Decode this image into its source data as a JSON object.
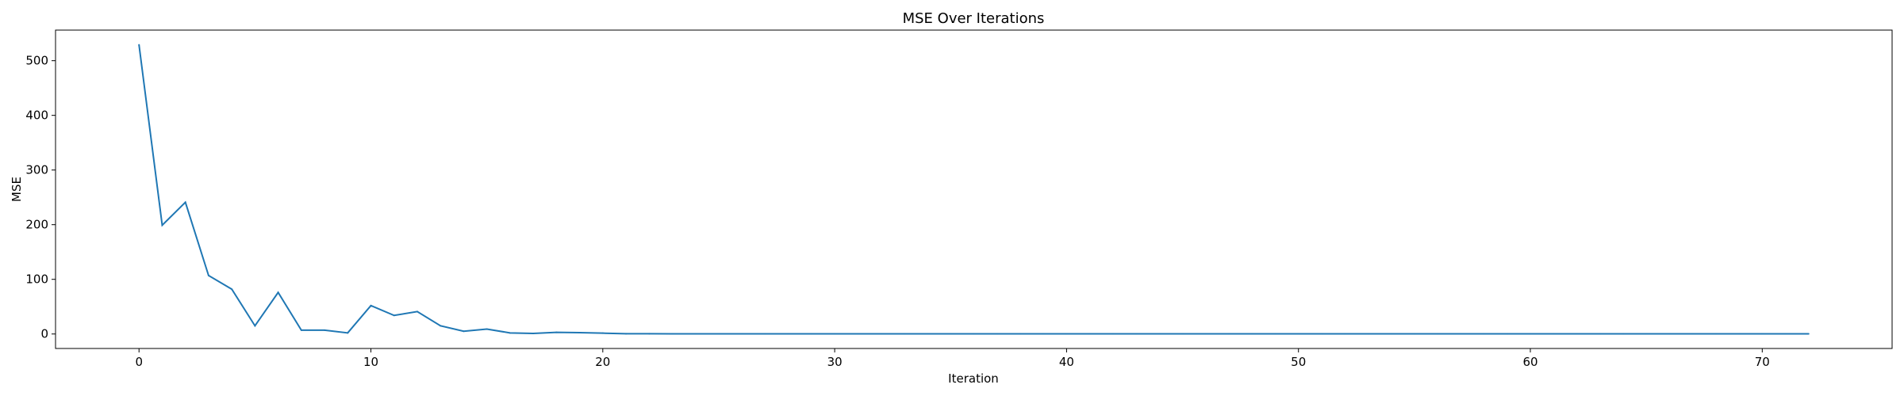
{
  "chart_data": {
    "type": "line",
    "title": "MSE Over Iterations",
    "xlabel": "Iteration",
    "ylabel": "MSE",
    "xlim": [
      -3.6,
      75.6
    ],
    "ylim": [
      -26.5,
      556
    ],
    "xticks": [
      0,
      10,
      20,
      30,
      40,
      50,
      60,
      70
    ],
    "yticks": [
      0,
      100,
      200,
      300,
      400,
      500
    ],
    "grid": false,
    "series": [
      {
        "color": "#1f77b4",
        "x": [
          0,
          1,
          2,
          3,
          4,
          5,
          6,
          7,
          8,
          9,
          10,
          11,
          12,
          13,
          14,
          15,
          16,
          17,
          18,
          19,
          20,
          21,
          22,
          23,
          24,
          25,
          26,
          27,
          28,
          29,
          30,
          31,
          32,
          33,
          34,
          35,
          36,
          37,
          38,
          39,
          40,
          41,
          42,
          43,
          44,
          45,
          46,
          47,
          48,
          49,
          50,
          51,
          52,
          53,
          54,
          55,
          56,
          57,
          58,
          59,
          60,
          61,
          62,
          63,
          64,
          65,
          66,
          67,
          68,
          69,
          70,
          71,
          72
        ],
        "y": [
          529,
          199,
          241,
          107,
          82,
          15,
          76,
          7,
          7,
          2,
          52,
          34,
          41,
          15,
          5,
          9,
          2,
          1,
          3,
          2.5,
          1.5,
          0.5,
          0.5,
          0.3,
          0.3,
          0.3,
          0.3,
          0.3,
          0.3,
          0.3,
          0.3,
          0.3,
          0.3,
          0.3,
          0.3,
          0.3,
          0.3,
          0.3,
          0.3,
          0.3,
          0.3,
          0.3,
          0.3,
          0.3,
          0.3,
          0.3,
          0.3,
          0.3,
          0.3,
          0.3,
          0.3,
          0.3,
          0.3,
          0.3,
          0.3,
          0.3,
          0.3,
          0.3,
          0.3,
          0.3,
          0.3,
          0.3,
          0.3,
          0.3,
          0.3,
          0.3,
          0.3,
          0.3,
          0.3,
          0.3,
          0.3,
          0.3,
          0.3
        ]
      }
    ]
  }
}
